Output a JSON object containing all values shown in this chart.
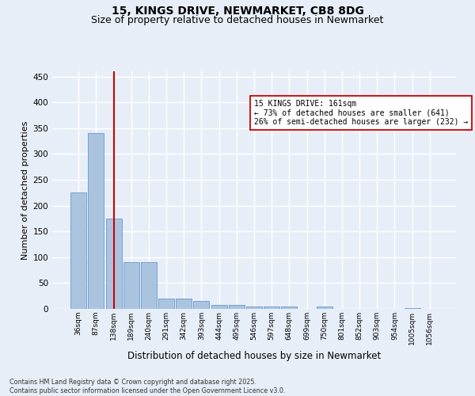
{
  "title": "15, KINGS DRIVE, NEWMARKET, CB8 8DG",
  "subtitle": "Size of property relative to detached houses in Newmarket",
  "xlabel": "Distribution of detached houses by size in Newmarket",
  "ylabel": "Number of detached properties",
  "categories": [
    "36sqm",
    "87sqm",
    "138sqm",
    "189sqm",
    "240sqm",
    "291sqm",
    "342sqm",
    "393sqm",
    "444sqm",
    "495sqm",
    "546sqm",
    "597sqm",
    "648sqm",
    "699sqm",
    "750sqm",
    "801sqm",
    "852sqm",
    "903sqm",
    "954sqm",
    "1005sqm",
    "1056sqm"
  ],
  "values": [
    225,
    340,
    175,
    90,
    90,
    20,
    20,
    15,
    8,
    8,
    5,
    5,
    5,
    0,
    4,
    0,
    0,
    0,
    0,
    2,
    0
  ],
  "bar_color": "#aac4e0",
  "bar_edge_color": "#6699cc",
  "vline_x": 2,
  "vline_color": "#cc0000",
  "annotation_text": "15 KINGS DRIVE: 161sqm\n← 73% of detached houses are smaller (641)\n26% of semi-detached houses are larger (232) →",
  "annotation_box_color": "#ffffff",
  "annotation_box_edge": "#cc0000",
  "ylim": [
    0,
    460
  ],
  "yticks": [
    0,
    50,
    100,
    150,
    200,
    250,
    300,
    350,
    400,
    450
  ],
  "bg_color": "#e8eef8",
  "grid_color": "#ffffff",
  "title_fontsize": 10,
  "subtitle_fontsize": 9,
  "footnote": "Contains HM Land Registry data © Crown copyright and database right 2025.\nContains public sector information licensed under the Open Government Licence v3.0."
}
